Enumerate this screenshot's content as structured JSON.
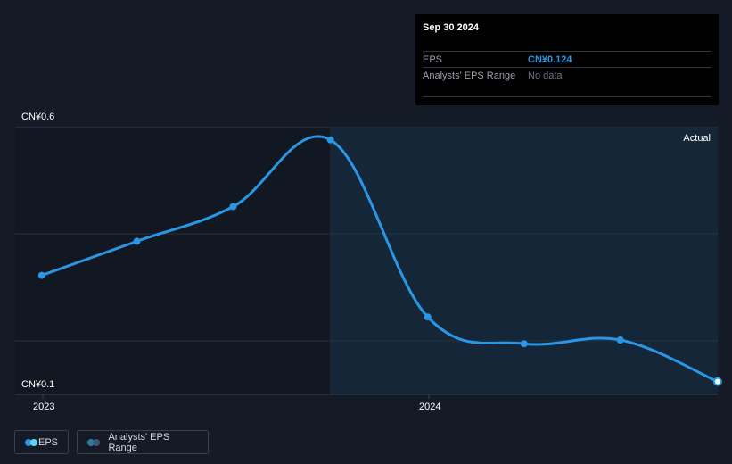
{
  "chart_data": {
    "type": "line",
    "y_top_label": "CN¥0.6",
    "y_bottom_label": "CN¥0.1",
    "ylim": [
      0.1,
      0.6
    ],
    "x_tick_labels": [
      "2023",
      "2024"
    ],
    "region_label": "Actual",
    "series": [
      {
        "name": "EPS",
        "x": [
          "2022-12-31",
          "2023-03-31",
          "2023-06-30",
          "2023-09-30",
          "2023-12-31",
          "2024-03-31",
          "2024-06-30",
          "2024-09-30"
        ],
        "values": [
          0.323,
          0.387,
          0.452,
          0.577,
          0.245,
          0.195,
          0.202,
          0.124
        ]
      }
    ]
  },
  "tooltip": {
    "date": "Sep 30 2024",
    "rows": [
      {
        "label": "EPS",
        "value": "CN¥0.124"
      },
      {
        "label": "Analysts' EPS Range",
        "value": "No data"
      }
    ]
  },
  "legend": [
    {
      "label": "EPS",
      "colors": [
        "#2a96e6",
        "#5ad6f0"
      ]
    },
    {
      "label": "Analysts' EPS Range",
      "colors": [
        "#2a7ca8",
        "#3a5870"
      ]
    }
  ],
  "colors": {
    "background": "#151b26",
    "forecast_region": "#142638",
    "past_region": "#121821",
    "line": "#2a96e6",
    "grid": "#2e3440"
  }
}
